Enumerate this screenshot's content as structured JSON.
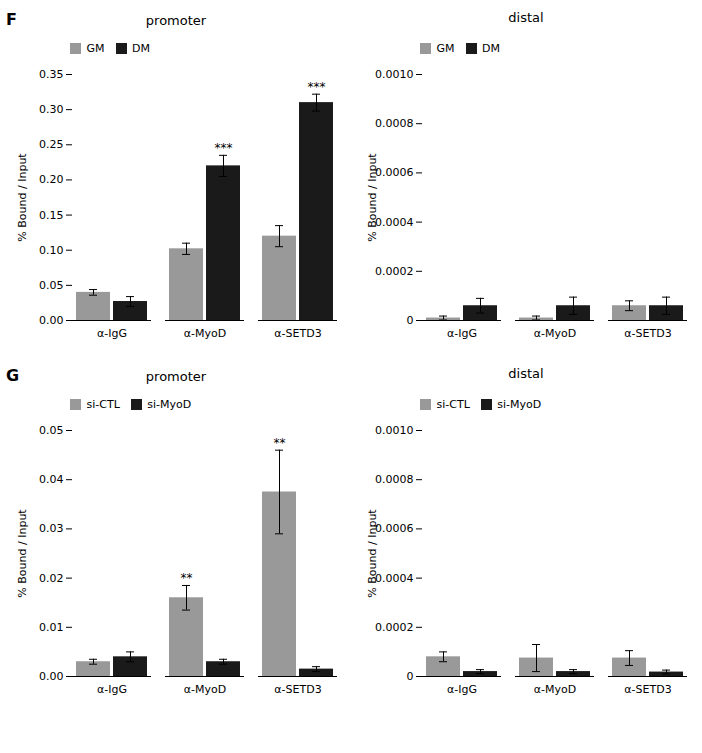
{
  "chart_data": [
    {
      "type": "bar",
      "title": "promoter",
      "categories": [
        "α-IgG",
        "α-MyoD",
        "α-SETD3"
      ],
      "series": [
        {
          "name": "GM",
          "color": "#999999",
          "values": [
            0.04,
            0.102,
            0.12
          ],
          "errors": [
            0.004,
            0.008,
            0.015
          ]
        },
        {
          "name": "DM",
          "color": "#1a1a1a",
          "values": [
            0.027,
            0.22,
            0.31
          ],
          "errors": [
            0.007,
            0.015,
            0.012
          ]
        }
      ],
      "ylim": [
        0,
        0.35
      ],
      "yticks": [
        {
          "value": 0,
          "label": "0.00"
        },
        0.05,
        {
          "value": 0.1,
          "label": "0.10"
        },
        0.15,
        {
          "value": 0.2,
          "label": "0.20"
        },
        0.25,
        {
          "value": 0.3,
          "label": "0.30"
        },
        0.35
      ],
      "ylabel": "% Bound / Input",
      "legend": "upper left",
      "annotations": [
        {
          "text": "F"
        },
        {
          "category": "α-MyoD",
          "series": "DM",
          "text": "***"
        },
        {
          "category": "α-SETD3",
          "series": "DM",
          "text": "***"
        }
      ]
    },
    {
      "type": "bar",
      "title": "distal",
      "categories": [
        "α-IgG",
        "α-MyoD",
        "α-SETD3"
      ],
      "series": [
        {
          "name": "GM",
          "color": "#999999",
          "values": [
            1e-05,
            1e-05,
            6e-05
          ],
          "errors": [
            8e-06,
            8e-06,
            2e-05
          ]
        },
        {
          "name": "DM",
          "color": "#1a1a1a",
          "values": [
            6e-05,
            6e-05,
            6e-05
          ],
          "errors": [
            3e-05,
            3.5e-05,
            3.5e-05
          ]
        }
      ],
      "ylim": [
        0,
        0.001
      ],
      "yticks": [
        0,
        0.0002,
        0.0004,
        0.0006,
        0.0008,
        {
          "value": 0.001,
          "label": "0.0010"
        }
      ],
      "ylabel": "% Bound / Input",
      "legend": "upper left"
    },
    {
      "type": "bar",
      "title": "promoter",
      "categories": [
        "α-IgG",
        "α-MyoD",
        "α-SETD3"
      ],
      "series": [
        {
          "name": "si-CTL",
          "color": "#999999",
          "values": [
            0.003,
            0.016,
            0.0375
          ],
          "errors": [
            0.0005,
            0.0025,
            0.0085
          ]
        },
        {
          "name": "si-MyoD",
          "color": "#1a1a1a",
          "values": [
            0.004,
            0.003,
            0.0015
          ],
          "errors": [
            0.001,
            0.0005,
            0.0005
          ]
        }
      ],
      "ylim": [
        0,
        0.05
      ],
      "yticks": [
        {
          "value": 0,
          "label": "0.00"
        },
        0.01,
        0.02,
        0.03,
        0.04,
        0.05
      ],
      "ylabel": "% Bound / Input",
      "legend": "upper left",
      "annotations": [
        {
          "text": "G"
        },
        {
          "category": "α-MyoD",
          "series": "si-CTL",
          "text": "**"
        },
        {
          "category": "α-SETD3",
          "series": "si-CTL",
          "text": "**"
        }
      ]
    },
    {
      "type": "bar",
      "title": "distal",
      "categories": [
        "α-IgG",
        "α-MyoD",
        "α-SETD3"
      ],
      "series": [
        {
          "name": "si-CTL",
          "color": "#999999",
          "values": [
            8e-05,
            7.5e-05,
            7.5e-05
          ],
          "errors": [
            2e-05,
            5.5e-05,
            3e-05
          ]
        },
        {
          "name": "si-MyoD",
          "color": "#1a1a1a",
          "values": [
            2e-05,
            2e-05,
            1.8e-05
          ],
          "errors": [
            8e-06,
            8e-06,
            8e-06
          ]
        }
      ],
      "ylim": [
        0,
        0.001
      ],
      "yticks": [
        0,
        0.0002,
        0.0004,
        0.0006,
        0.0008,
        {
          "value": 0.001,
          "label": "0.0010"
        }
      ],
      "ylabel": "% Bound / Input",
      "legend": "upper left"
    }
  ]
}
